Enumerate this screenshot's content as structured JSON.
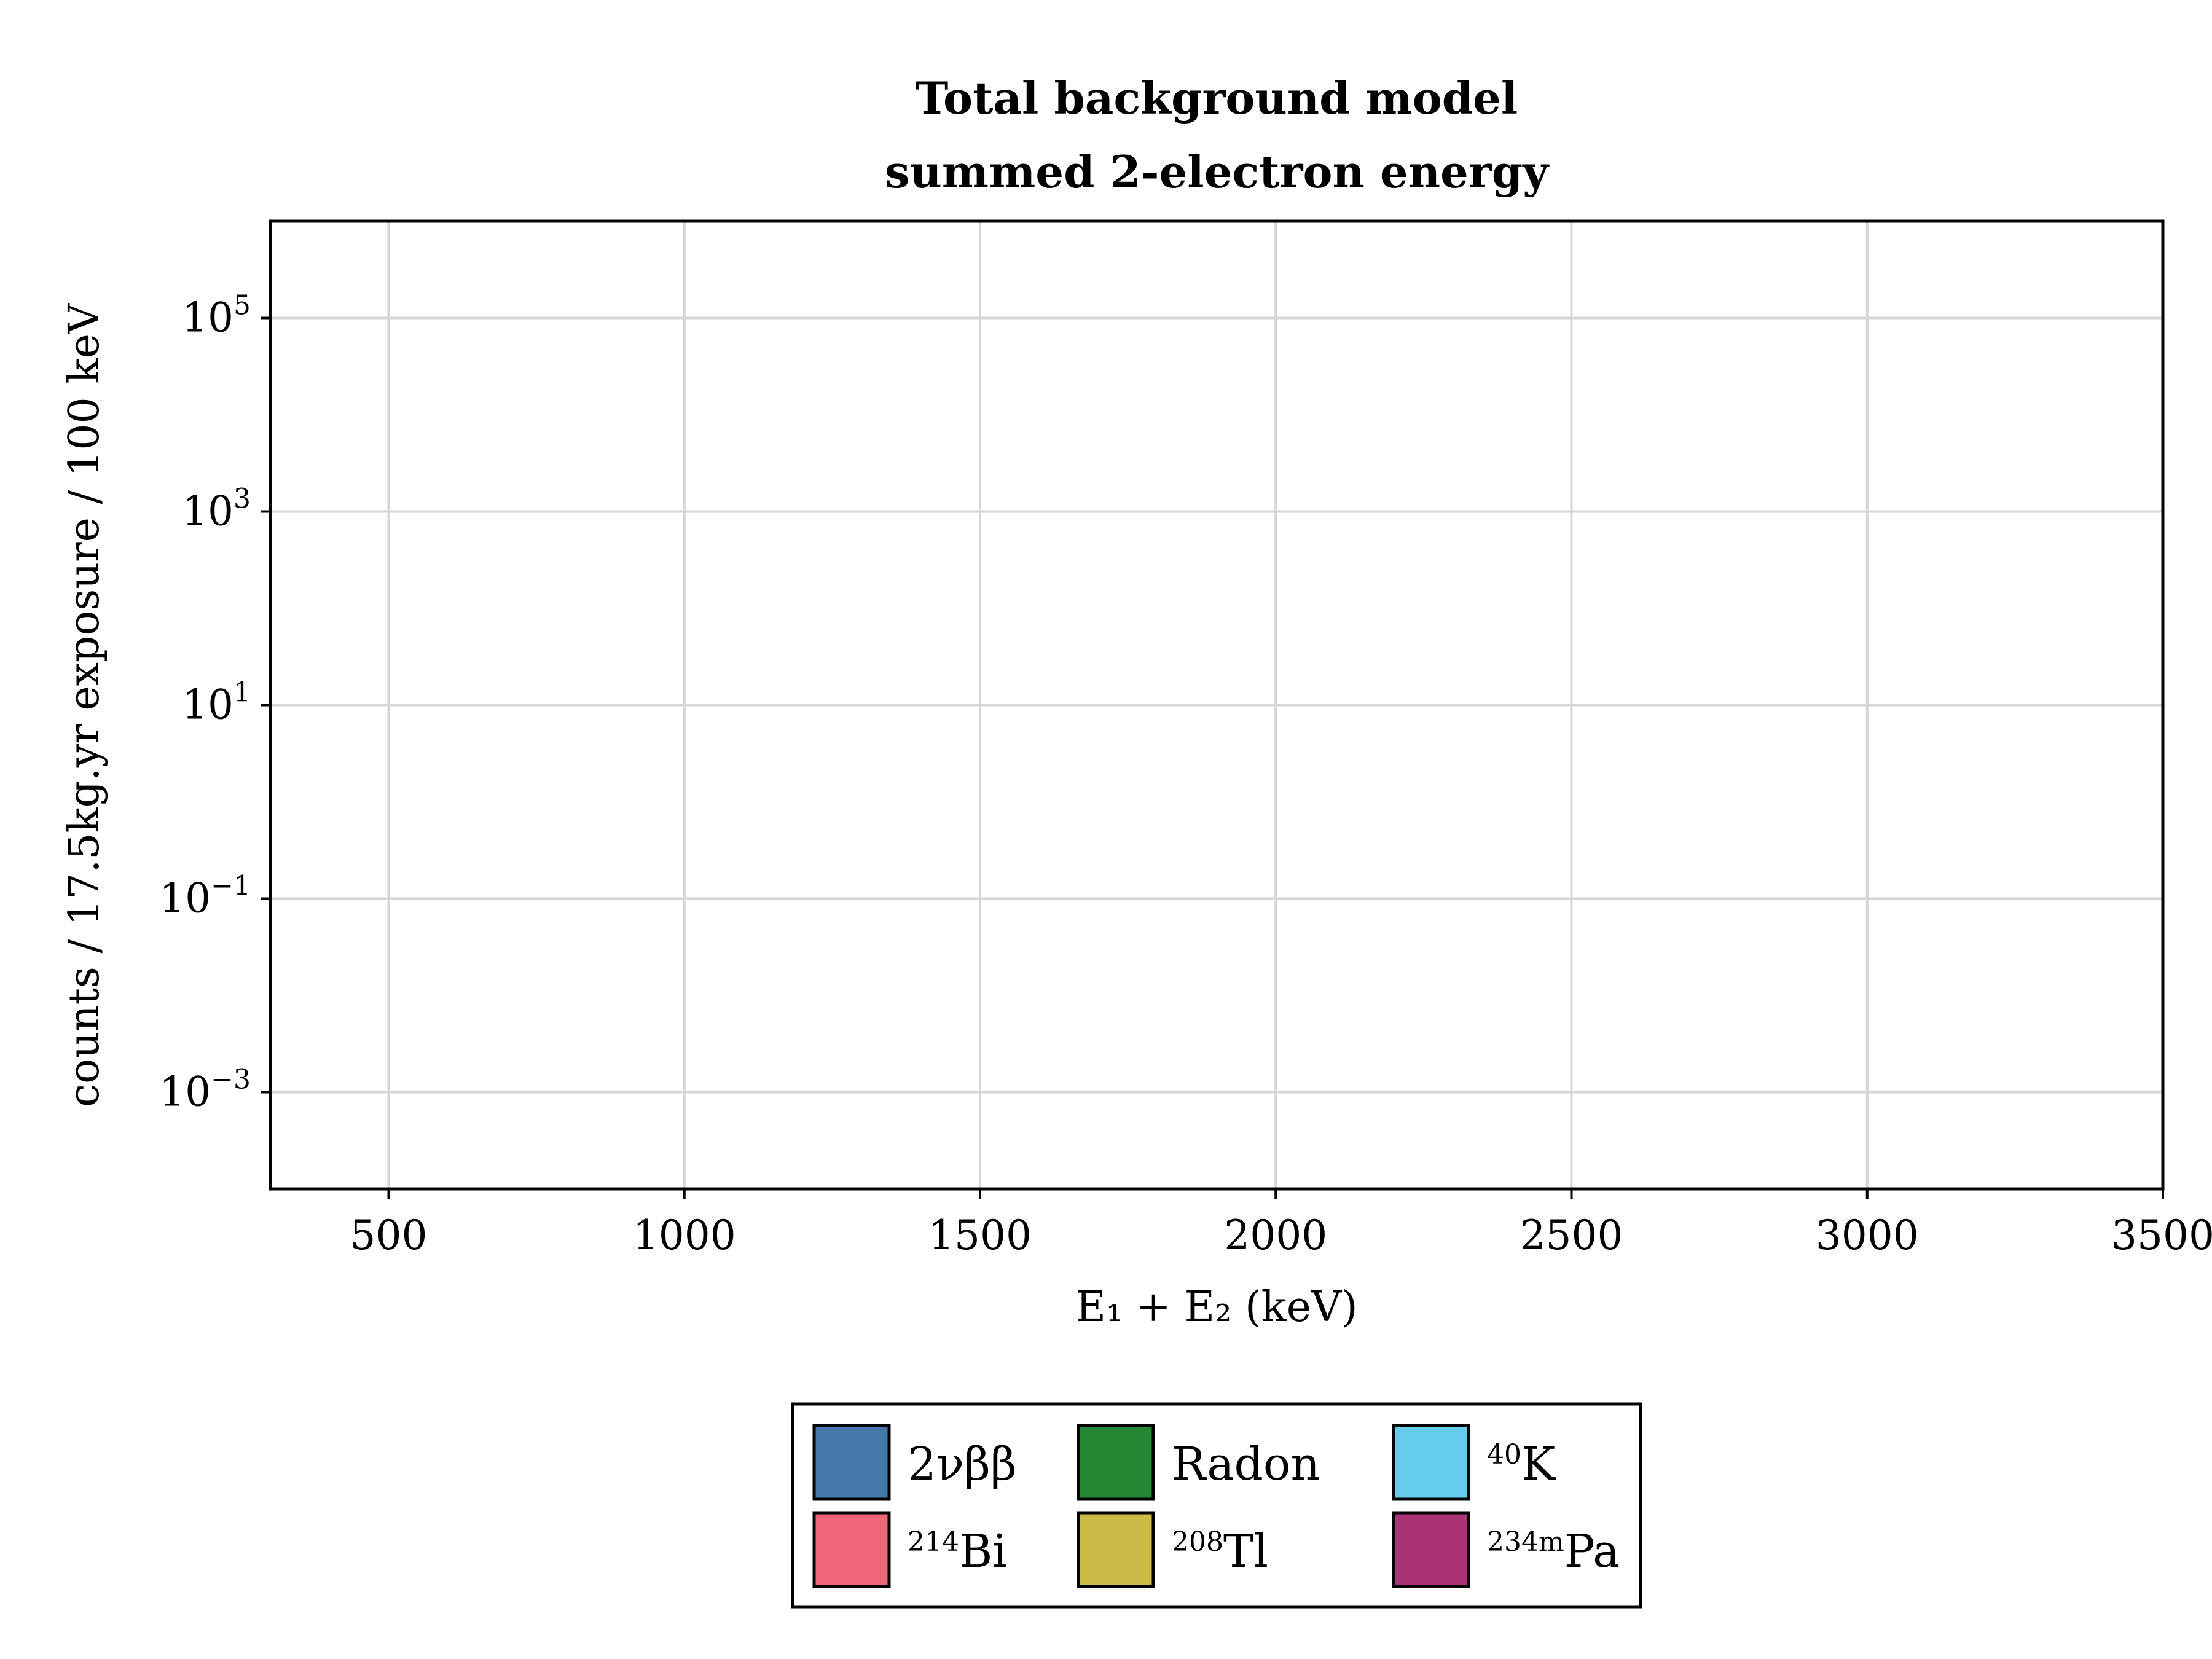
{
  "chart_data": {
    "type": "bar",
    "title": "Total background model",
    "subtitle": "summed 2-electron energy",
    "xlabel": "E₁ + E₂ (keV)",
    "ylabel": "counts / 17.5kg.yr exposure / 100 keV",
    "xlim": [
      300,
      3500
    ],
    "ylim": [
      0.0001,
      1000000
    ],
    "yscale": "log",
    "grid": true,
    "x_ticks": [
      500,
      1000,
      1500,
      2000,
      2500,
      3000,
      3500
    ],
    "x_tick_labels": [
      "500",
      "1000",
      "1500",
      "2000",
      "2500",
      "3000",
      "3500"
    ],
    "y_ticks": [
      {
        "value": 0.001,
        "base": "10",
        "exp": "−3"
      },
      {
        "value": 0.1,
        "base": "10",
        "exp": "−1"
      },
      {
        "value": 10,
        "base": "10",
        "exp": "1"
      },
      {
        "value": 1000,
        "base": "10",
        "exp": "3"
      },
      {
        "value": 100000,
        "base": "10",
        "exp": "5"
      }
    ],
    "legend_placement": "bottom-center",
    "series": [
      {
        "name": "2νββ",
        "sup": "",
        "label": "2νββ",
        "color": "#4477aa",
        "values": []
      },
      {
        "name": "Radon",
        "sup": "",
        "label": "Radon",
        "color": "#228833",
        "values": []
      },
      {
        "name": "40K",
        "sup": "40",
        "label": "K",
        "color": "#66ccee",
        "values": []
      },
      {
        "name": "214Bi",
        "sup": "214",
        "label": "Bi",
        "color": "#ee6677",
        "values": []
      },
      {
        "name": "208Tl",
        "sup": "208",
        "label": "Tl",
        "color": "#ccbb44",
        "values": []
      },
      {
        "name": "234mPa",
        "sup": "234m",
        "label": "Pa",
        "color": "#aa3377",
        "values": []
      }
    ]
  }
}
